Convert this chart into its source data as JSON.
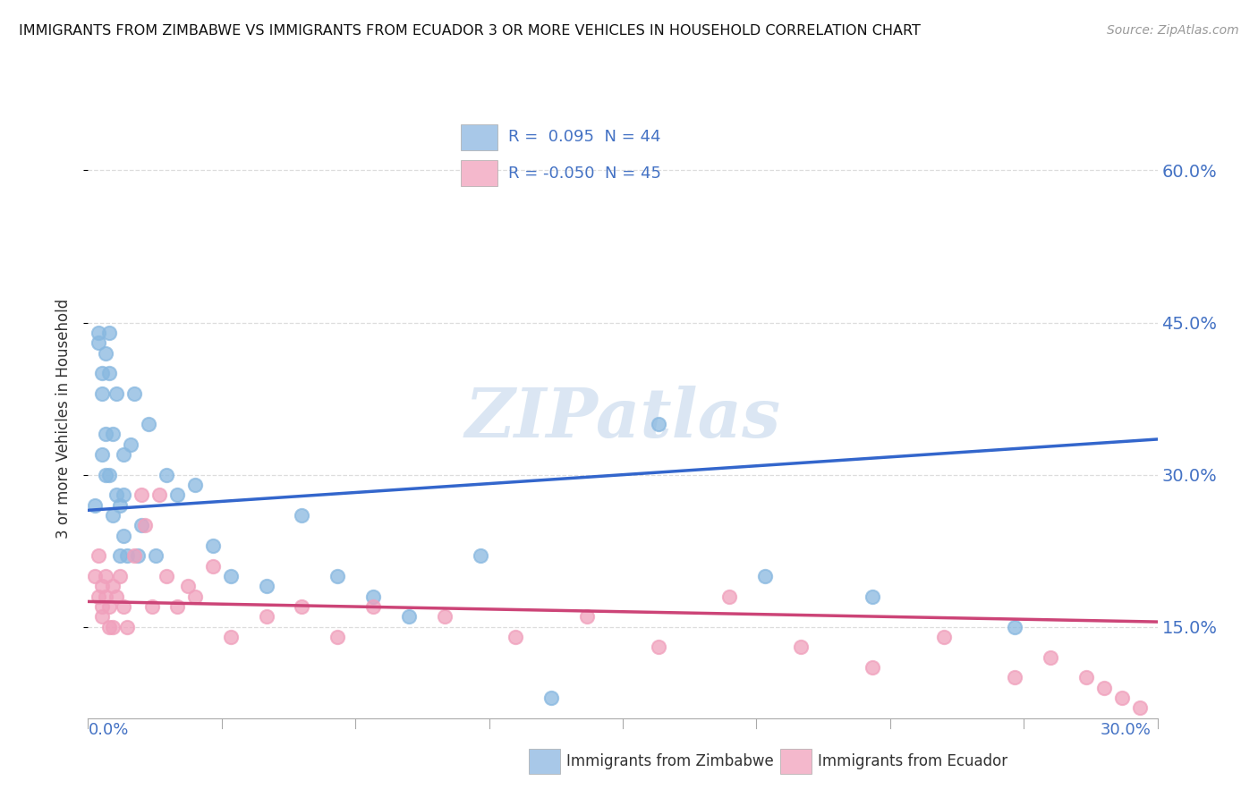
{
  "title": "IMMIGRANTS FROM ZIMBABWE VS IMMIGRANTS FROM ECUADOR 3 OR MORE VEHICLES IN HOUSEHOLD CORRELATION CHART",
  "source": "Source: ZipAtlas.com",
  "ylabel_ticks": [
    15.0,
    30.0,
    45.0,
    60.0
  ],
  "xlim": [
    0.0,
    0.3
  ],
  "ylim": [
    0.06,
    0.65
  ],
  "legend_entries": [
    {
      "label": "R =  0.095  N = 44",
      "color": "#a8c8e8"
    },
    {
      "label": "R = -0.050  N = 45",
      "color": "#f4b8cc"
    }
  ],
  "legend_xlabel": [
    "Immigrants from Zimbabwe",
    "Immigrants from Ecuador"
  ],
  "zim_color": "#88b8e0",
  "ecu_color": "#f0a0bc",
  "trend_zim_color": "#3366cc",
  "trend_ecu_color": "#cc4477",
  "watermark": "ZIPatlas",
  "background_color": "#ffffff",
  "grid_color": "#dddddd",
  "title_color": "#111111",
  "axis_label_color": "#4472c4",
  "zim_x": [
    0.002,
    0.003,
    0.003,
    0.004,
    0.004,
    0.004,
    0.005,
    0.005,
    0.005,
    0.006,
    0.006,
    0.006,
    0.007,
    0.007,
    0.008,
    0.008,
    0.009,
    0.009,
    0.01,
    0.01,
    0.01,
    0.011,
    0.012,
    0.013,
    0.014,
    0.015,
    0.017,
    0.019,
    0.022,
    0.025,
    0.03,
    0.035,
    0.04,
    0.05,
    0.06,
    0.07,
    0.08,
    0.09,
    0.11,
    0.13,
    0.16,
    0.19,
    0.22,
    0.26
  ],
  "zim_y": [
    0.27,
    0.44,
    0.43,
    0.4,
    0.38,
    0.32,
    0.42,
    0.3,
    0.34,
    0.44,
    0.4,
    0.3,
    0.34,
    0.26,
    0.38,
    0.28,
    0.27,
    0.22,
    0.32,
    0.28,
    0.24,
    0.22,
    0.33,
    0.38,
    0.22,
    0.25,
    0.35,
    0.22,
    0.3,
    0.28,
    0.29,
    0.23,
    0.2,
    0.19,
    0.26,
    0.2,
    0.18,
    0.16,
    0.22,
    0.08,
    0.35,
    0.2,
    0.18,
    0.15
  ],
  "ecu_x": [
    0.002,
    0.003,
    0.003,
    0.004,
    0.004,
    0.004,
    0.005,
    0.005,
    0.006,
    0.006,
    0.007,
    0.007,
    0.008,
    0.009,
    0.01,
    0.011,
    0.013,
    0.015,
    0.016,
    0.018,
    0.02,
    0.022,
    0.025,
    0.028,
    0.03,
    0.035,
    0.04,
    0.05,
    0.06,
    0.07,
    0.08,
    0.1,
    0.12,
    0.14,
    0.16,
    0.18,
    0.2,
    0.22,
    0.24,
    0.26,
    0.27,
    0.28,
    0.285,
    0.29,
    0.295
  ],
  "ecu_y": [
    0.2,
    0.22,
    0.18,
    0.19,
    0.17,
    0.16,
    0.2,
    0.18,
    0.17,
    0.15,
    0.19,
    0.15,
    0.18,
    0.2,
    0.17,
    0.15,
    0.22,
    0.28,
    0.25,
    0.17,
    0.28,
    0.2,
    0.17,
    0.19,
    0.18,
    0.21,
    0.14,
    0.16,
    0.17,
    0.14,
    0.17,
    0.16,
    0.14,
    0.16,
    0.13,
    0.18,
    0.13,
    0.11,
    0.14,
    0.1,
    0.12,
    0.1,
    0.09,
    0.08,
    0.07
  ]
}
